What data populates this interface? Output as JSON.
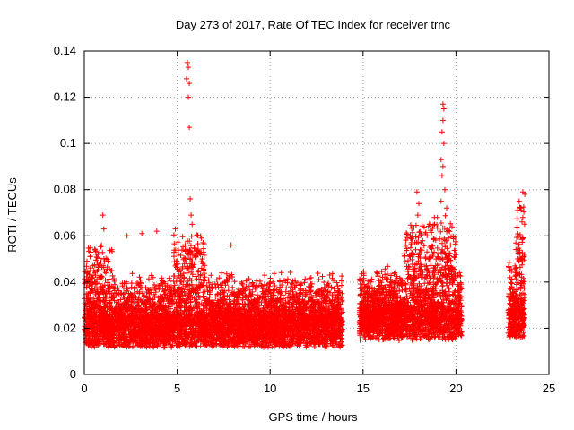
{
  "chart_data": {
    "type": "scatter",
    "title": "Day 273 of 2017, Rate Of TEC Index for receiver trnc",
    "xlabel": "GPS time / hours",
    "ylabel": "ROTI / TECUs",
    "xlim": [
      0,
      25
    ],
    "ylim": [
      0,
      0.14
    ],
    "x_ticks": [
      0,
      5,
      10,
      15,
      20,
      25
    ],
    "x_tick_labels": [
      "0",
      "5",
      "10",
      "15",
      "20",
      "25"
    ],
    "y_ticks": [
      0,
      0.02,
      0.04,
      0.06,
      0.08,
      0.1,
      0.12,
      0.14
    ],
    "y_tick_labels": [
      "0",
      "0.02",
      "0.04",
      "0.06",
      "0.08",
      "0.1",
      "0.12",
      "0.14"
    ],
    "grid": true,
    "legend": "none",
    "marker": "plus",
    "marker_color": "#ff0000",
    "series": [
      {
        "data_segments": [
          {
            "x_range": [
              0.0,
              13.9
            ],
            "baseline": 0.018
          },
          {
            "x_range": [
              14.8,
              20.3
            ],
            "baseline": 0.021
          },
          {
            "x_range": [
              22.8,
              23.7
            ],
            "baseline": 0.022
          }
        ],
        "peaks": [
          {
            "x": 5.55,
            "y": 0.135
          },
          {
            "x": 5.6,
            "y": 0.133
          },
          {
            "x": 5.5,
            "y": 0.128
          },
          {
            "x": 5.65,
            "y": 0.126
          },
          {
            "x": 5.6,
            "y": 0.12
          },
          {
            "x": 5.65,
            "y": 0.107
          },
          {
            "x": 5.7,
            "y": 0.076
          },
          {
            "x": 5.75,
            "y": 0.069
          },
          {
            "x": 5.8,
            "y": 0.065
          },
          {
            "x": 4.9,
            "y": 0.063
          },
          {
            "x": 1.0,
            "y": 0.069
          },
          {
            "x": 1.05,
            "y": 0.063
          },
          {
            "x": 19.3,
            "y": 0.117
          },
          {
            "x": 19.35,
            "y": 0.115
          },
          {
            "x": 19.3,
            "y": 0.11
          },
          {
            "x": 19.25,
            "y": 0.105
          },
          {
            "x": 19.35,
            "y": 0.1
          },
          {
            "x": 19.2,
            "y": 0.093
          },
          {
            "x": 19.3,
            "y": 0.09
          },
          {
            "x": 19.25,
            "y": 0.086
          },
          {
            "x": 19.4,
            "y": 0.08
          },
          {
            "x": 19.2,
            "y": 0.075
          },
          {
            "x": 17.9,
            "y": 0.079
          },
          {
            "x": 18.0,
            "y": 0.074
          },
          {
            "x": 17.95,
            "y": 0.069
          },
          {
            "x": 19.5,
            "y": 0.072
          },
          {
            "x": 19.0,
            "y": 0.068
          },
          {
            "x": 23.6,
            "y": 0.079
          },
          {
            "x": 23.7,
            "y": 0.078
          },
          {
            "x": 23.4,
            "y": 0.075
          },
          {
            "x": 23.5,
            "y": 0.072
          },
          {
            "x": 23.3,
            "y": 0.071
          },
          {
            "x": 23.55,
            "y": 0.066
          },
          {
            "x": 3.9,
            "y": 0.062
          },
          {
            "x": 3.1,
            "y": 0.061
          },
          {
            "x": 7.9,
            "y": 0.056
          },
          {
            "x": 2.3,
            "y": 0.06
          }
        ]
      }
    ]
  }
}
